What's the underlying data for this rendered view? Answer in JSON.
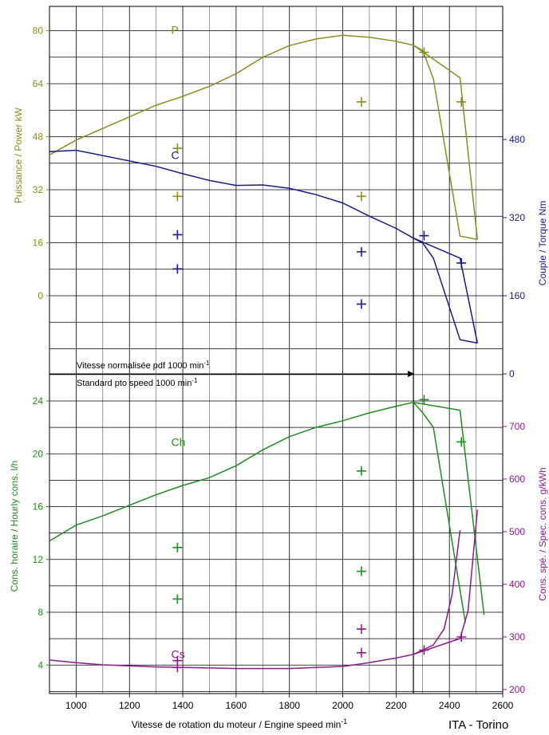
{
  "colors": {
    "power": "#8c8c1e",
    "torque": "#1a1a8c",
    "hourly": "#1f8c1f",
    "specific": "#8c1a8c",
    "grid": "#000000",
    "text": "#000000"
  },
  "chart_data": {
    "type": "line",
    "xlabel": "Vitesse de rotation du moteur / Engine speed min",
    "xlabel_sup": "-1",
    "footer": "ITA - Torino",
    "xlim": [
      900,
      2600
    ],
    "x_ticks": [
      1000,
      1200,
      1400,
      1600,
      1800,
      2000,
      2200,
      2400,
      2600
    ],
    "pto_line_x": 2265,
    "pto_label_line1": "Vitesse normalisée pdf 1000 min",
    "pto_label_line2": "Standard pto speed 1000 min",
    "pto_label_sup": "-1",
    "axes": {
      "power": {
        "label": "Puissance / Power kW",
        "ticks": [
          0,
          16,
          32,
          48,
          64,
          80
        ],
        "range": [
          -16,
          84
        ]
      },
      "torque": {
        "label": "Couple / Torque Nm",
        "ticks": [
          0,
          160,
          320,
          480
        ]
      },
      "hourly": {
        "label": "Cons. horaire / Hourly cons. l/h",
        "ticks": [
          4,
          8,
          12,
          16,
          20,
          24
        ],
        "range": [
          1.2,
          28
        ]
      },
      "specific": {
        "label": "Cons. spé. / Spec. cons. g/kWh",
        "ticks": [
          200,
          300,
          400,
          500,
          600,
          700
        ]
      }
    },
    "series": [
      {
        "name": "P",
        "axis": "power",
        "x": [
          900,
          1000,
          1100,
          1200,
          1300,
          1400,
          1500,
          1600,
          1700,
          1800,
          1900,
          2000,
          2100,
          2200,
          2265,
          2300,
          2340,
          2440,
          2505
        ],
        "y": [
          42.5,
          47,
          50.5,
          54,
          57.5,
          60.2,
          63.2,
          67,
          72,
          75.5,
          77.5,
          78.6,
          78,
          76.8,
          75.6,
          74,
          65.5,
          18,
          17
        ],
        "x2": [
          2265,
          2440,
          2505
        ],
        "y2": [
          75.6,
          65.8,
          17
        ]
      },
      {
        "name": "C",
        "axis": "torque",
        "x": [
          900,
          1000,
          1100,
          1200,
          1300,
          1400,
          1500,
          1600,
          1700,
          1800,
          1900,
          2000,
          2100,
          2200,
          2265,
          2300,
          2340,
          2440,
          2505
        ],
        "y": [
          455,
          458,
          447,
          436,
          425,
          410,
          396,
          386,
          387,
          380,
          367,
          350,
          323,
          298,
          278,
          268,
          237,
          70,
          63
        ],
        "x2": [
          2265,
          2440,
          2505
        ],
        "y2": [
          278,
          237,
          63
        ]
      },
      {
        "name": "Ch",
        "axis": "hourly",
        "x": [
          900,
          1000,
          1100,
          1200,
          1300,
          1400,
          1500,
          1600,
          1700,
          1800,
          1900,
          2000,
          2100,
          2200,
          2265,
          2300,
          2340,
          2460
        ],
        "y": [
          13.4,
          14.6,
          15.3,
          16.1,
          16.9,
          17.6,
          18.2,
          19.1,
          20.3,
          21.3,
          22.0,
          22.5,
          23.1,
          23.6,
          23.9,
          23.1,
          22.0,
          7.2
        ],
        "x2": [
          2265,
          2440,
          2530
        ],
        "y2": [
          23.9,
          23.3,
          7.8
        ]
      },
      {
        "name": "Cs",
        "axis": "specific",
        "x": [
          900,
          1000,
          1100,
          1200,
          1300,
          1400,
          1500,
          1600,
          1700,
          1800,
          1900,
          2000,
          2100,
          2200,
          2265,
          2300,
          2340,
          2380,
          2410,
          2440
        ],
        "y": [
          256,
          251,
          247,
          245,
          243,
          242,
          241,
          240,
          240,
          240,
          242,
          244,
          251,
          260,
          267,
          275,
          285,
          315,
          380,
          503
        ],
        "x2": [
          2265,
          2440,
          2470,
          2505
        ],
        "y2": [
          267,
          297,
          350,
          542
        ]
      }
    ],
    "markers": [
      {
        "series": "P",
        "points": [
          [
            1380,
            44.5
          ],
          [
            1380,
            30
          ],
          [
            2070,
            58.5
          ],
          [
            2070,
            30
          ],
          [
            2305,
            73.5
          ],
          [
            2445,
            58.5
          ]
        ]
      },
      {
        "series": "C",
        "points": [
          [
            1380,
            285
          ],
          [
            1380,
            215
          ],
          [
            2070,
            250
          ],
          [
            2070,
            143
          ],
          [
            2305,
            283
          ],
          [
            2445,
            227
          ]
        ]
      },
      {
        "series": "Ch",
        "points": [
          [
            1380,
            12.9
          ],
          [
            1380,
            9.0
          ],
          [
            2070,
            18.7
          ],
          [
            2070,
            11.1
          ],
          [
            2305,
            24.1
          ],
          [
            2445,
            20.9
          ]
        ]
      },
      {
        "series": "Cs",
        "points": [
          [
            1380,
            255
          ],
          [
            1380,
            242
          ],
          [
            2070,
            315
          ],
          [
            2070,
            270
          ],
          [
            2305,
            275
          ],
          [
            2445,
            300
          ]
        ]
      }
    ],
    "curve_labels": [
      {
        "series": "P",
        "text": "P",
        "x": 1500,
        "y": 79
      },
      {
        "series": "C",
        "text": "C",
        "x": 1500,
        "y": 440
      },
      {
        "series": "Ch",
        "text": "Ch",
        "x": 1500,
        "y": 20.6
      },
      {
        "series": "Cs",
        "text": "Cs",
        "x": 1500,
        "y": 260
      }
    ]
  }
}
